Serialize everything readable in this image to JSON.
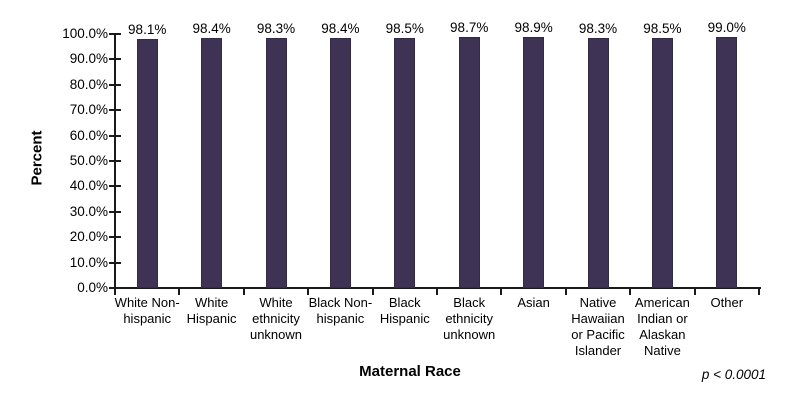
{
  "chart_data": {
    "type": "bar",
    "title": "",
    "categories": [
      "White Non-hispanic",
      "White Hispanic",
      "White ethnicity unknown",
      "Black Non-hispanic",
      "Black Hispanic",
      "Black ethnicity unknown",
      "Asian",
      "Native Hawaiian or Pacific Islander",
      "American Indian or Alaskan Native",
      "Other"
    ],
    "values": [
      98.1,
      98.4,
      98.3,
      98.4,
      98.5,
      98.7,
      98.9,
      98.3,
      98.5,
      99.0
    ],
    "value_labels": [
      "98.1%",
      "98.4%",
      "98.3%",
      "98.4%",
      "98.5%",
      "98.7%",
      "98.9%",
      "98.3%",
      "98.5%",
      "99.0%"
    ],
    "xlabel": "Maternal Race",
    "ylabel": "Percent",
    "ylim": [
      0,
      100
    ],
    "ytick_step": 10,
    "ytick_labels": [
      "0.0%",
      "10.0%",
      "20.0%",
      "30.0%",
      "40.0%",
      "50.0%",
      "60.0%",
      "70.0%",
      "80.0%",
      "90.0%",
      "100.0%"
    ],
    "annotation": "p < 0.0001",
    "grid": false,
    "legend": null,
    "bar_color": "#3f3355",
    "bar_border_color": "#332a45",
    "axis_color": "#1a1a1a",
    "text_color": "#000000"
  }
}
